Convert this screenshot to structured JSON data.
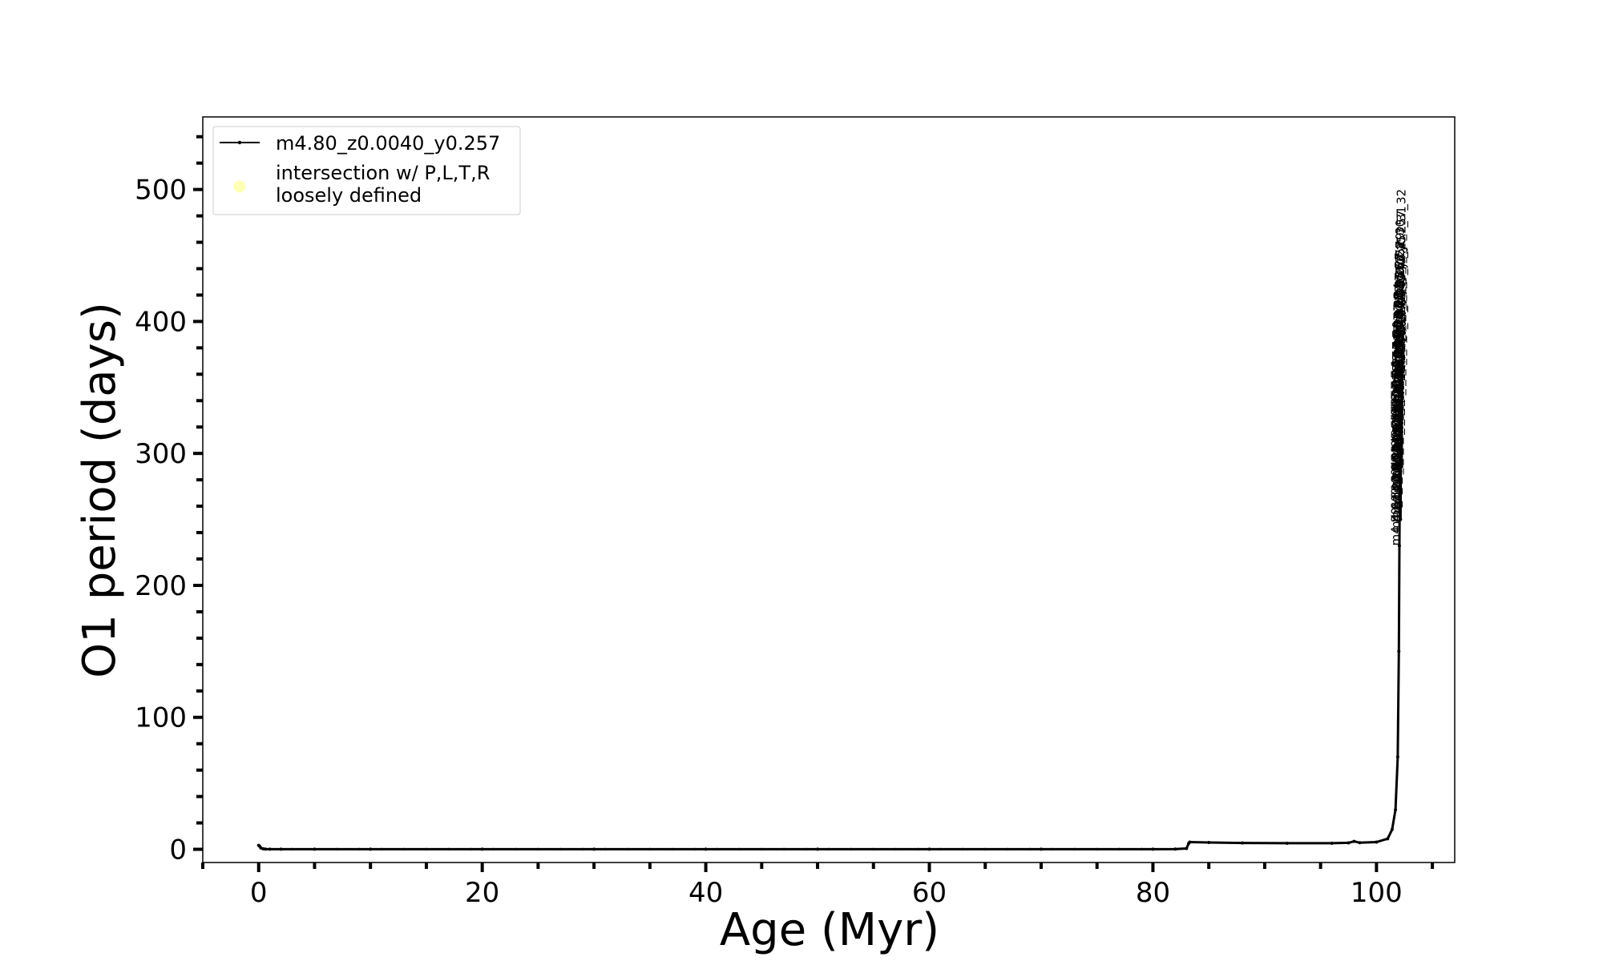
{
  "chart_data": {
    "type": "line",
    "xlabel": "Age (Myr)",
    "ylabel": "O1 period (days)",
    "xlim": [
      -5,
      107
    ],
    "ylim": [
      -10,
      555
    ],
    "xticks": [
      0,
      20,
      40,
      60,
      80,
      100
    ],
    "yticks": [
      0,
      100,
      200,
      300,
      400,
      500
    ],
    "xtick_labels": [
      "0",
      "20",
      "40",
      "60",
      "80",
      "100"
    ],
    "ytick_labels": [
      "0",
      "100",
      "200",
      "300",
      "400",
      "500"
    ],
    "grid": false,
    "legend_position": "top-left",
    "legend": [
      {
        "label": "m4.80_z0.0040_y0.257",
        "marker": "line",
        "color": "#000000"
      },
      {
        "label_lines": [
          "intersection w/ P,L,T,R",
          "loosely defined"
        ],
        "marker": "circle",
        "color": "#ffffa8"
      }
    ],
    "series": [
      {
        "name": "m4.80_z0.0040_y0.257",
        "color": "#000000",
        "x": [
          0.0,
          0.1,
          0.2,
          0.4,
          0.6,
          1.0,
          2.0,
          5.0,
          10.0,
          20.0,
          30.0,
          40.0,
          50.0,
          60.0,
          70.0,
          80.0,
          82.0,
          83.0,
          83.2,
          83.3,
          85.0,
          88.0,
          92.0,
          96.0,
          97.5,
          98.0,
          98.5,
          100.0,
          101.0,
          101.4,
          101.7,
          101.9,
          102.0,
          102.05,
          102.1,
          102.15,
          102.2,
          102.25,
          102.3
        ],
        "y": [
          3.0,
          2.2,
          1.0,
          0.4,
          0.2,
          0.1,
          0.1,
          0.1,
          0.1,
          0.1,
          0.1,
          0.1,
          0.1,
          0.1,
          0.1,
          0.1,
          0.2,
          0.6,
          4.5,
          5.5,
          5.2,
          4.8,
          4.6,
          4.6,
          4.9,
          6.0,
          5.0,
          5.5,
          8.0,
          15.0,
          30.0,
          70.0,
          150.0,
          230.0,
          300.0,
          250.0,
          340.0,
          290.0,
          378.0
        ]
      }
    ],
    "annotations": [
      {
        "x": 102.6,
        "y": 378,
        "text": "m4.80_z0.0040_y0.257_32"
      },
      {
        "x": 102.6,
        "y": 365,
        "text": "m4.80_z0.0040_y0.257_31"
      },
      {
        "x": 102.5,
        "y": 355,
        "text": "m4.80_z0.0040_y0.257_30"
      },
      {
        "x": 102.5,
        "y": 345,
        "text": "m4.80_z0.0040_y0.257_29"
      },
      {
        "x": 102.5,
        "y": 338,
        "text": "m4.80_z0.0040_y0.257_28"
      },
      {
        "x": 102.4,
        "y": 330,
        "text": "m4.80_z0.0040_y0.257_27"
      },
      {
        "x": 102.4,
        "y": 322,
        "text": "m4.80_z0.0040_y0.257_26"
      },
      {
        "x": 102.4,
        "y": 315,
        "text": "m4.80_z0.0040_y0.257_25"
      },
      {
        "x": 102.3,
        "y": 307,
        "text": "m4.80_z0.0040_y0.257_24"
      },
      {
        "x": 102.3,
        "y": 300,
        "text": "m4.80_z0.0040_y0.257_23"
      },
      {
        "x": 102.3,
        "y": 292,
        "text": "m4.80_z0.0040_y0.257_22"
      },
      {
        "x": 102.3,
        "y": 285,
        "text": "m4.80_z0.0040_y0.257_21"
      },
      {
        "x": 102.2,
        "y": 278,
        "text": "m4.80_z0.0040_y0.257_20"
      },
      {
        "x": 102.2,
        "y": 270,
        "text": "m4.80_z0.0040_y0.257_19"
      },
      {
        "x": 102.2,
        "y": 262,
        "text": "m4.80_z0.0040_y0.257_18"
      },
      {
        "x": 102.2,
        "y": 255,
        "text": "m4.80_z0.0040_y0.257_17"
      },
      {
        "x": 102.1,
        "y": 248,
        "text": "m4.80_z0.0040_y0.257_16"
      },
      {
        "x": 102.1,
        "y": 240,
        "text": "m4.80_z0.0040_y0.257_15"
      },
      {
        "x": 102.1,
        "y": 230,
        "text": "m4.80_z0.0040_y0.257_14"
      }
    ]
  }
}
